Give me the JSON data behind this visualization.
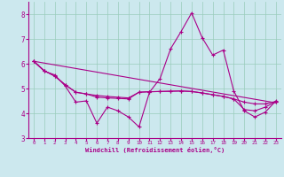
{
  "xlabel": "Windchill (Refroidissement éolien,°C)",
  "bg_color": "#cce8ee",
  "plot_bg": "#cce8ee",
  "grid_color": "#99ccbb",
  "line_color": "#aa0088",
  "xlabel_color": "#aa0088",
  "tick_color": "#aa0088",
  "spine_color": "#aa0088",
  "xlim": [
    -0.5,
    23.5
  ],
  "ylim": [
    3.0,
    8.5
  ],
  "yticks": [
    3,
    4,
    5,
    6,
    7,
    8
  ],
  "xticks": [
    0,
    1,
    2,
    3,
    4,
    5,
    6,
    7,
    8,
    9,
    10,
    11,
    12,
    13,
    14,
    15,
    16,
    17,
    18,
    19,
    20,
    21,
    22,
    23
  ],
  "line1_x": [
    0,
    1,
    2,
    3,
    4,
    5,
    6,
    7,
    8,
    9,
    10,
    11,
    12,
    13,
    14,
    15,
    16,
    17,
    18,
    19,
    20,
    21,
    22,
    23
  ],
  "line1_y": [
    6.1,
    5.7,
    5.55,
    5.1,
    4.45,
    4.5,
    3.6,
    4.25,
    4.1,
    3.85,
    3.45,
    4.85,
    5.4,
    6.6,
    7.3,
    8.05,
    7.05,
    6.35,
    6.55,
    4.9,
    4.1,
    3.85,
    4.05,
    4.5
  ],
  "line2_x": [
    0,
    1,
    2,
    3,
    4,
    5,
    6,
    7,
    8,
    9,
    10,
    11,
    12,
    13,
    14,
    15,
    16,
    17,
    18,
    19,
    20,
    21,
    22,
    23
  ],
  "line2_y": [
    6.1,
    5.72,
    5.5,
    5.15,
    4.85,
    4.78,
    4.72,
    4.68,
    4.65,
    4.62,
    4.85,
    4.87,
    4.88,
    4.89,
    4.9,
    4.88,
    4.82,
    4.75,
    4.68,
    4.58,
    4.45,
    4.38,
    4.38,
    4.48
  ],
  "line3_x": [
    0,
    23
  ],
  "line3_y": [
    6.1,
    4.42
  ],
  "line4_x": [
    0,
    1,
    2,
    3,
    4,
    5,
    6,
    7,
    8,
    9,
    10,
    11,
    12,
    13,
    14,
    15,
    16,
    17,
    18,
    19,
    20,
    21,
    22,
    23
  ],
  "line4_y": [
    6.1,
    5.72,
    5.5,
    5.15,
    4.85,
    4.78,
    4.65,
    4.62,
    4.6,
    4.58,
    4.85,
    4.87,
    4.88,
    4.89,
    4.9,
    4.88,
    4.82,
    4.75,
    4.68,
    4.58,
    4.15,
    4.1,
    4.25,
    4.48
  ]
}
